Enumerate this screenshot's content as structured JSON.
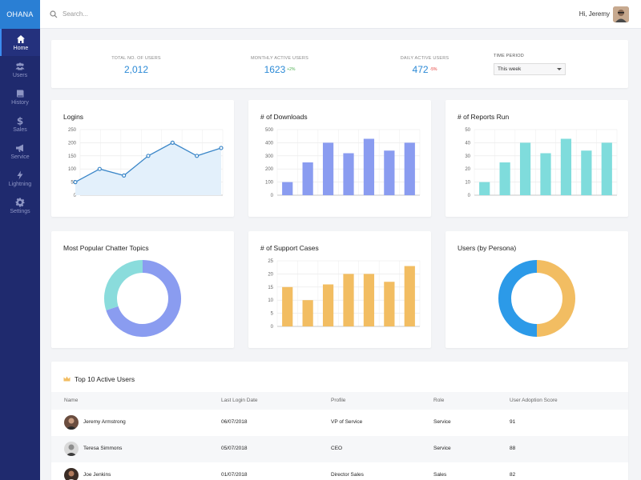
{
  "app": {
    "brand": "OHANA"
  },
  "sidebar": {
    "items": [
      {
        "label": "Home",
        "icon": "home-icon",
        "active": true
      },
      {
        "label": "Users",
        "icon": "users-icon"
      },
      {
        "label": "History",
        "icon": "book-icon"
      },
      {
        "label": "Sales",
        "icon": "dollar-icon"
      },
      {
        "label": "Service",
        "icon": "megaphone-icon"
      },
      {
        "label": "Lightning",
        "icon": "bolt-icon"
      },
      {
        "label": "Settings",
        "icon": "gear-icon"
      }
    ]
  },
  "header": {
    "search_placeholder": "Search...",
    "greeting": "Hi, Jeremy"
  },
  "stats": {
    "total_users": {
      "label": "TOTAL NO. OF USERS",
      "value": "2,012"
    },
    "monthly_active": {
      "label": "MONTHLY ACTIVE USERS",
      "value": "1623",
      "delta": "+2%"
    },
    "daily_active": {
      "label": "DAILY ACTIVE USERS",
      "value": "472",
      "delta": "-5%"
    },
    "time_period": {
      "label": "TIME PERIOD",
      "selected": "This week"
    }
  },
  "colors": {
    "accent": "#2c8ad6",
    "line": "#3a86c8",
    "downloads": "#8a9cf0",
    "reports": "#7fdcdc",
    "support": "#f2bd62",
    "donut_a": "#8a9cf0",
    "donut_b": "#8adcdc",
    "persona_a": "#f2bd62",
    "persona_b": "#2c9ae8"
  },
  "chart_data": [
    {
      "id": "logins",
      "type": "area",
      "title": "Logins",
      "ylim": [
        0,
        250
      ],
      "yticks": [
        0,
        50,
        100,
        150,
        200,
        250
      ],
      "values": [
        50,
        100,
        75,
        150,
        200,
        150,
        180
      ]
    },
    {
      "id": "downloads",
      "type": "bar",
      "title": "# of Downloads",
      "ylim": [
        0,
        500
      ],
      "yticks": [
        0,
        100,
        200,
        300,
        400,
        500
      ],
      "values": [
        100,
        250,
        400,
        320,
        430,
        340,
        400
      ]
    },
    {
      "id": "reports",
      "type": "bar",
      "title": "# of Reports Run",
      "ylim": [
        0,
        50
      ],
      "yticks": [
        0,
        10,
        20,
        30,
        40,
        50
      ],
      "values": [
        10,
        25,
        40,
        32,
        43,
        34,
        40
      ]
    },
    {
      "id": "chatter",
      "type": "pie",
      "title": "Most Popular Chatter Topics",
      "values": [
        70,
        30
      ]
    },
    {
      "id": "support",
      "type": "bar",
      "title": "# of Support Cases",
      "ylim": [
        0,
        25
      ],
      "yticks": [
        0,
        5,
        10,
        15,
        20,
        25
      ],
      "values": [
        15,
        10,
        16,
        20,
        20,
        17,
        23
      ]
    },
    {
      "id": "persona",
      "type": "pie",
      "title": "Users (by Persona)",
      "values": [
        50,
        50
      ]
    }
  ],
  "table": {
    "title": "Top 10 Active Users",
    "columns": [
      "Name",
      "Last Login Date",
      "Profile",
      "Role",
      "User Adoption Score"
    ],
    "rows": [
      {
        "name": "Jeremy Armstrong",
        "last_login": "06/07/2018",
        "profile": "VP of Service",
        "role": "Service",
        "score": "91"
      },
      {
        "name": "Teresa Simmons",
        "last_login": "05/07/2018",
        "profile": "CEO",
        "role": "Service",
        "score": "88"
      },
      {
        "name": "Joe Jenkins",
        "last_login": "01/07/2018",
        "profile": "Director Sales",
        "role": "Sales",
        "score": "82"
      }
    ]
  }
}
